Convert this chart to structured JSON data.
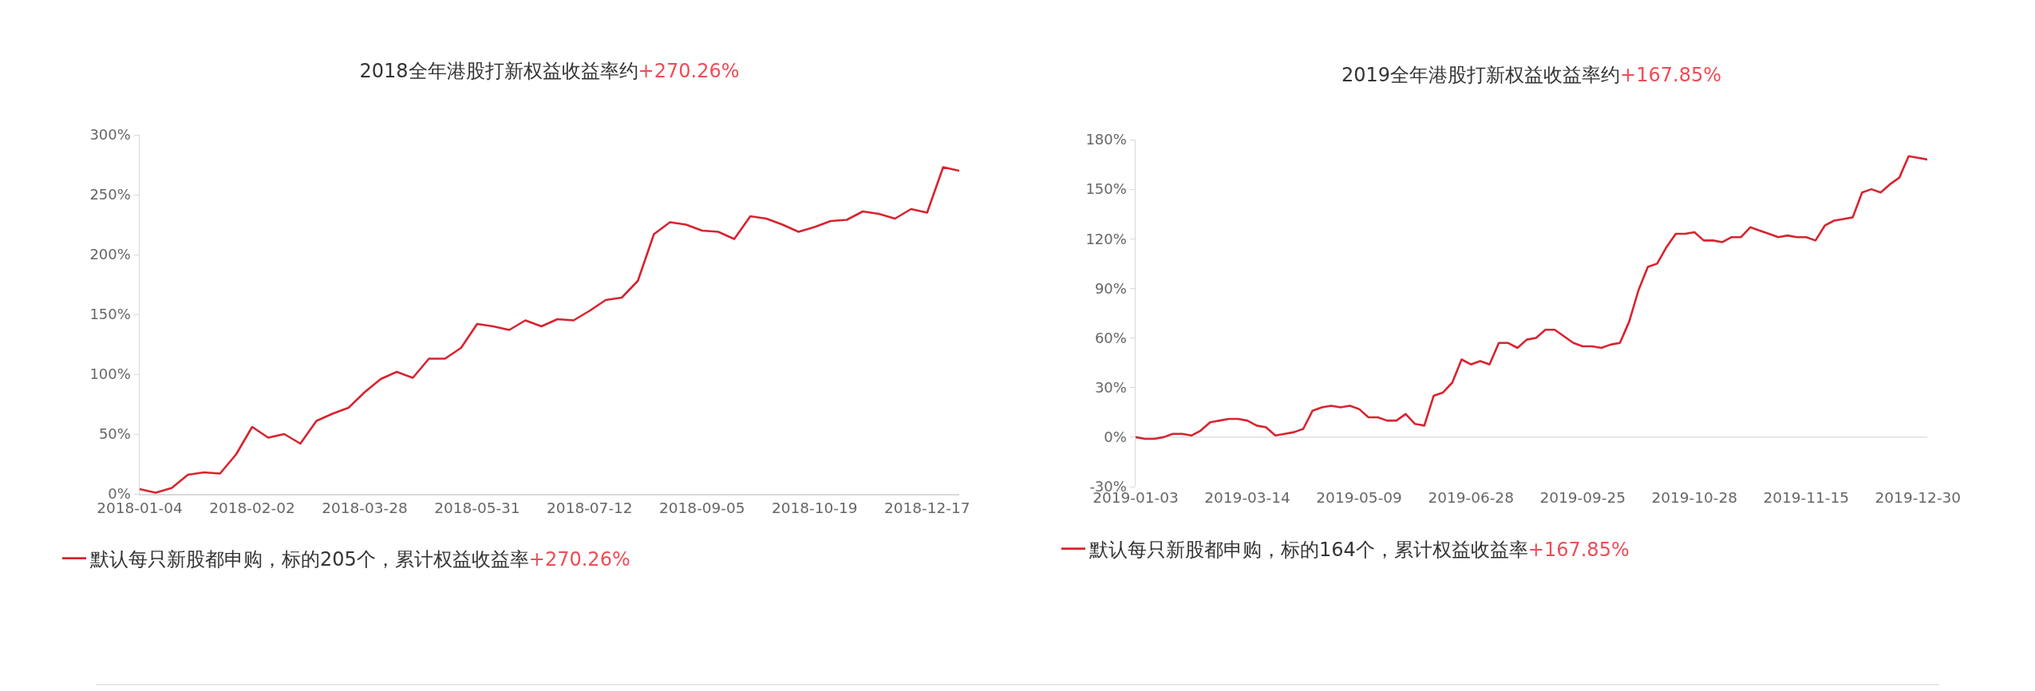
{
  "chart_data": [
    {
      "type": "line",
      "title": "2018全年港股打新权益收益率约+270.26%",
      "categories": [
        "2018-01-04",
        null,
        null,
        null,
        null,
        null,
        null,
        "2018-02-02",
        null,
        null,
        null,
        null,
        null,
        null,
        "2018-03-28",
        null,
        null,
        null,
        null,
        null,
        null,
        "2018-05-31",
        null,
        null,
        null,
        null,
        null,
        null,
        "2018-07-12",
        null,
        null,
        null,
        null,
        null,
        null,
        "2018-09-05",
        null,
        null,
        null,
        null,
        null,
        null,
        "2018-10-19",
        null,
        null,
        null,
        null,
        null,
        null,
        "2018-12-17",
        null,
        null
      ],
      "series": [
        {
          "name": "默认每只新股都申购，标的205个，累计权益收益率+270.26%",
          "color": "#d8232f",
          "values": [
            4,
            1,
            5,
            16,
            18,
            17,
            33,
            56,
            47,
            50,
            42,
            61,
            67,
            72,
            85,
            96,
            102,
            97,
            113,
            113,
            122,
            142,
            140,
            137,
            145,
            140,
            146,
            145,
            153,
            162,
            164,
            178,
            217,
            227,
            225,
            220,
            219,
            213,
            232,
            230,
            225,
            219,
            223,
            228,
            229,
            236,
            234,
            230,
            238,
            235,
            273,
            270
          ]
        }
      ],
      "ylim": [
        0,
        300
      ],
      "yticks": [
        {
          "value": 0,
          "label": "0%"
        },
        {
          "value": 50,
          "label": "50%"
        },
        {
          "value": 100,
          "label": "100%"
        },
        {
          "value": 150,
          "label": "150%"
        },
        {
          "value": 200,
          "label": "200%"
        },
        {
          "value": 250,
          "label": "250%"
        },
        {
          "value": 300,
          "label": "300%"
        }
      ],
      "grid": false,
      "legend": "bottom left",
      "marker": "none",
      "line_style": "solid"
    },
    {
      "type": "line",
      "title": "2019全年港股打新权益收益率约+167.85%",
      "categories": [
        "2019-01-03",
        null,
        null,
        null,
        null,
        null,
        null,
        null,
        null,
        null,
        null,
        null,
        "2019-03-14",
        null,
        null,
        null,
        null,
        null,
        null,
        null,
        null,
        null,
        null,
        null,
        "2019-05-09",
        null,
        null,
        null,
        null,
        null,
        null,
        null,
        null,
        null,
        null,
        null,
        "2019-06-28",
        null,
        null,
        null,
        null,
        null,
        null,
        null,
        null,
        null,
        null,
        null,
        "2019-09-25",
        null,
        null,
        null,
        null,
        null,
        null,
        null,
        null,
        null,
        null,
        null,
        "2019-10-28",
        null,
        null,
        null,
        null,
        null,
        null,
        null,
        null,
        null,
        null,
        null,
        "2019-11-15",
        null,
        null,
        null,
        null,
        null,
        null,
        null,
        null,
        null,
        null,
        null,
        "2019-12-30",
        null
      ],
      "series": [
        {
          "name": "默认每只新股都申购，标的164个，累计权益收益率+167.85%",
          "color": "#d8232f",
          "values": [
            0,
            -1,
            -1,
            0,
            2,
            2,
            1,
            4,
            9,
            10,
            11,
            11,
            10,
            7,
            6,
            1,
            2,
            3,
            5,
            16,
            18,
            19,
            18,
            19,
            17,
            12,
            12,
            10,
            10,
            14,
            8,
            7,
            25,
            27,
            33,
            47,
            44,
            46,
            44,
            57,
            57,
            54,
            59,
            60,
            65,
            65,
            61,
            57,
            55,
            55,
            54,
            56,
            57,
            70,
            89,
            103,
            105,
            115,
            123,
            123,
            124,
            119,
            119,
            118,
            121,
            121,
            127,
            125,
            123,
            121,
            122,
            121,
            121,
            119,
            128,
            131,
            132,
            133,
            148,
            150,
            148,
            153,
            157,
            170,
            169,
            168
          ]
        }
      ],
      "ylim": [
        -30,
        180
      ],
      "yticks": [
        {
          "value": -30,
          "label": "-30%"
        },
        {
          "value": 0,
          "label": "0%"
        },
        {
          "value": 30,
          "label": "30%"
        },
        {
          "value": 60,
          "label": "60%"
        },
        {
          "value": 90,
          "label": "90%"
        },
        {
          "value": 120,
          "label": "120%"
        },
        {
          "value": 150,
          "label": "150%"
        },
        {
          "value": 180,
          "label": "180%"
        }
      ],
      "ref_lines": [
        {
          "axis": "y",
          "value": 0,
          "color": "#e0e0e0"
        }
      ],
      "grid": false,
      "legend": "bottom left",
      "marker": "none",
      "line_style": "solid"
    }
  ]
}
